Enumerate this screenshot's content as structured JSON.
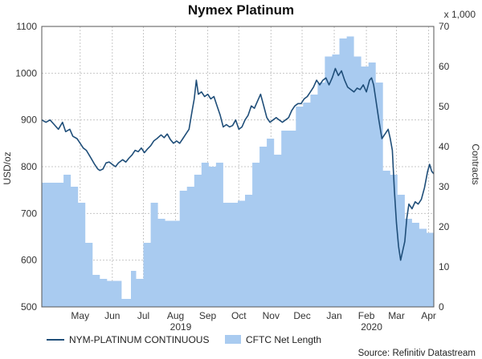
{
  "chart_data": {
    "type": "line",
    "title": "Nymex Platinum",
    "y_left": {
      "label": "USD/oz",
      "range": [
        500,
        1100
      ],
      "ticks": [
        500,
        600,
        700,
        800,
        900,
        1000,
        1100
      ]
    },
    "y_right": {
      "label": "Contracts",
      "unit_note": "x 1,000",
      "range": [
        0,
        70
      ],
      "ticks": [
        0,
        10,
        20,
        30,
        40,
        50,
        60,
        70
      ]
    },
    "x_axis": {
      "range": [
        "2019-04-08",
        "2020-04-20"
      ],
      "month_ticks": [
        {
          "label": "May",
          "date": "2019-05-15"
        },
        {
          "label": "Jun",
          "date": "2019-06-15"
        },
        {
          "label": "Jul",
          "date": "2019-07-15"
        },
        {
          "label": "Aug",
          "date": "2019-08-15"
        },
        {
          "label": "Sep",
          "date": "2019-09-15"
        },
        {
          "label": "Oct",
          "date": "2019-10-15"
        },
        {
          "label": "Nov",
          "date": "2019-11-15"
        },
        {
          "label": "Dec",
          "date": "2019-12-15"
        },
        {
          "label": "Jan",
          "date": "2020-01-15"
        },
        {
          "label": "Feb",
          "date": "2020-02-15"
        },
        {
          "label": "Mar",
          "date": "2020-03-15"
        },
        {
          "label": "Apr",
          "date": "2020-04-15"
        }
      ],
      "year_labels": [
        {
          "label": "2019",
          "date": "2019-08-20"
        },
        {
          "label": "2020",
          "date": "2020-02-20"
        }
      ]
    },
    "grid": true,
    "legend_position": "bottom-left",
    "series": [
      {
        "name": "NYM-PLATINUM CONTINUOUS",
        "type": "line",
        "axis": "left",
        "color": "#1f4e79",
        "points": [
          [
            "2019-04-08",
            900
          ],
          [
            "2019-04-12",
            895
          ],
          [
            "2019-04-16",
            900
          ],
          [
            "2019-04-20",
            890
          ],
          [
            "2019-04-24",
            880
          ],
          [
            "2019-04-28",
            895
          ],
          [
            "2019-05-01",
            875
          ],
          [
            "2019-05-05",
            880
          ],
          [
            "2019-05-08",
            865
          ],
          [
            "2019-05-12",
            860
          ],
          [
            "2019-05-15",
            850
          ],
          [
            "2019-05-18",
            840
          ],
          [
            "2019-05-21",
            835
          ],
          [
            "2019-05-25",
            820
          ],
          [
            "2019-05-29",
            805
          ],
          [
            "2019-06-01",
            795
          ],
          [
            "2019-06-03",
            792
          ],
          [
            "2019-06-06",
            795
          ],
          [
            "2019-06-09",
            808
          ],
          [
            "2019-06-12",
            810
          ],
          [
            "2019-06-15",
            805
          ],
          [
            "2019-06-18",
            800
          ],
          [
            "2019-06-21",
            808
          ],
          [
            "2019-06-25",
            815
          ],
          [
            "2019-06-28",
            810
          ],
          [
            "2019-07-01",
            818
          ],
          [
            "2019-07-04",
            825
          ],
          [
            "2019-07-07",
            835
          ],
          [
            "2019-07-10",
            832
          ],
          [
            "2019-07-13",
            840
          ],
          [
            "2019-07-16",
            830
          ],
          [
            "2019-07-19",
            838
          ],
          [
            "2019-07-22",
            845
          ],
          [
            "2019-07-25",
            855
          ],
          [
            "2019-07-28",
            860
          ],
          [
            "2019-08-01",
            868
          ],
          [
            "2019-08-04",
            862
          ],
          [
            "2019-08-07",
            870
          ],
          [
            "2019-08-10",
            858
          ],
          [
            "2019-08-13",
            850
          ],
          [
            "2019-08-16",
            855
          ],
          [
            "2019-08-19",
            850
          ],
          [
            "2019-08-22",
            860
          ],
          [
            "2019-08-25",
            870
          ],
          [
            "2019-08-28",
            880
          ],
          [
            "2019-08-31",
            920
          ],
          [
            "2019-09-02",
            945
          ],
          [
            "2019-09-04",
            985
          ],
          [
            "2019-09-06",
            955
          ],
          [
            "2019-09-09",
            960
          ],
          [
            "2019-09-12",
            950
          ],
          [
            "2019-09-15",
            955
          ],
          [
            "2019-09-18",
            945
          ],
          [
            "2019-09-21",
            950
          ],
          [
            "2019-09-24",
            930
          ],
          [
            "2019-09-27",
            910
          ],
          [
            "2019-09-30",
            885
          ],
          [
            "2019-10-03",
            890
          ],
          [
            "2019-10-06",
            885
          ],
          [
            "2019-10-09",
            888
          ],
          [
            "2019-10-12",
            900
          ],
          [
            "2019-10-15",
            880
          ],
          [
            "2019-10-18",
            885
          ],
          [
            "2019-10-21",
            900
          ],
          [
            "2019-10-24",
            910
          ],
          [
            "2019-10-27",
            930
          ],
          [
            "2019-10-30",
            925
          ],
          [
            "2019-11-02",
            940
          ],
          [
            "2019-11-05",
            955
          ],
          [
            "2019-11-08",
            930
          ],
          [
            "2019-11-11",
            905
          ],
          [
            "2019-11-14",
            895
          ],
          [
            "2019-11-17",
            900
          ],
          [
            "2019-11-20",
            905
          ],
          [
            "2019-11-23",
            900
          ],
          [
            "2019-11-26",
            895
          ],
          [
            "2019-11-29",
            900
          ],
          [
            "2019-12-02",
            905
          ],
          [
            "2019-12-05",
            920
          ],
          [
            "2019-12-08",
            930
          ],
          [
            "2019-12-11",
            935
          ],
          [
            "2019-12-14",
            935
          ],
          [
            "2019-12-17",
            945
          ],
          [
            "2019-12-20",
            950
          ],
          [
            "2019-12-23",
            960
          ],
          [
            "2019-12-26",
            970
          ],
          [
            "2019-12-29",
            985
          ],
          [
            "2020-01-01",
            975
          ],
          [
            "2020-01-04",
            985
          ],
          [
            "2020-01-07",
            990
          ],
          [
            "2020-01-10",
            975
          ],
          [
            "2020-01-13",
            990
          ],
          [
            "2020-01-16",
            1010
          ],
          [
            "2020-01-19",
            995
          ],
          [
            "2020-01-22",
            1005
          ],
          [
            "2020-01-25",
            985
          ],
          [
            "2020-01-28",
            970
          ],
          [
            "2020-01-31",
            965
          ],
          [
            "2020-02-03",
            960
          ],
          [
            "2020-02-06",
            968
          ],
          [
            "2020-02-09",
            965
          ],
          [
            "2020-02-12",
            975
          ],
          [
            "2020-02-15",
            960
          ],
          [
            "2020-02-18",
            985
          ],
          [
            "2020-02-20",
            990
          ],
          [
            "2020-02-22",
            975
          ],
          [
            "2020-02-24",
            945
          ],
          [
            "2020-02-27",
            900
          ],
          [
            "2020-03-01",
            860
          ],
          [
            "2020-03-04",
            870
          ],
          [
            "2020-03-07",
            880
          ],
          [
            "2020-03-09",
            860
          ],
          [
            "2020-03-11",
            835
          ],
          [
            "2020-03-13",
            750
          ],
          [
            "2020-03-15",
            680
          ],
          [
            "2020-03-17",
            630
          ],
          [
            "2020-03-19",
            600
          ],
          [
            "2020-03-21",
            620
          ],
          [
            "2020-03-23",
            640
          ],
          [
            "2020-03-25",
            690
          ],
          [
            "2020-03-27",
            720
          ],
          [
            "2020-03-30",
            710
          ],
          [
            "2020-04-02",
            725
          ],
          [
            "2020-04-05",
            720
          ],
          [
            "2020-04-08",
            730
          ],
          [
            "2020-04-11",
            755
          ],
          [
            "2020-04-14",
            790
          ],
          [
            "2020-04-16",
            805
          ],
          [
            "2020-04-18",
            790
          ],
          [
            "2020-04-20",
            785
          ]
        ]
      },
      {
        "name": "CFTC Net Length",
        "type": "area",
        "axis": "right",
        "color": "#a9cbf0",
        "points": [
          [
            "2019-04-08",
            31
          ],
          [
            "2019-04-22",
            31
          ],
          [
            "2019-04-29",
            33
          ],
          [
            "2019-05-06",
            30
          ],
          [
            "2019-05-13",
            26
          ],
          [
            "2019-05-20",
            16
          ],
          [
            "2019-05-27",
            8
          ],
          [
            "2019-06-03",
            7
          ],
          [
            "2019-06-10",
            6.5
          ],
          [
            "2019-06-17",
            6.5
          ],
          [
            "2019-06-24",
            2
          ],
          [
            "2019-07-01",
            2
          ],
          [
            "2019-07-03",
            9
          ],
          [
            "2019-07-08",
            7
          ],
          [
            "2019-07-15",
            16
          ],
          [
            "2019-07-22",
            26
          ],
          [
            "2019-07-29",
            22
          ],
          [
            "2019-08-05",
            21.5
          ],
          [
            "2019-08-12",
            21.5
          ],
          [
            "2019-08-19",
            29
          ],
          [
            "2019-08-26",
            30
          ],
          [
            "2019-09-02",
            33
          ],
          [
            "2019-09-09",
            36
          ],
          [
            "2019-09-16",
            35
          ],
          [
            "2019-09-23",
            36
          ],
          [
            "2019-09-30",
            26
          ],
          [
            "2019-10-07",
            26
          ],
          [
            "2019-10-14",
            26.5
          ],
          [
            "2019-10-21",
            28
          ],
          [
            "2019-10-28",
            36
          ],
          [
            "2019-11-04",
            40
          ],
          [
            "2019-11-11",
            42
          ],
          [
            "2019-11-18",
            38
          ],
          [
            "2019-11-25",
            44
          ],
          [
            "2019-12-02",
            44
          ],
          [
            "2019-12-09",
            50
          ],
          [
            "2019-12-16",
            51
          ],
          [
            "2019-12-23",
            53
          ],
          [
            "2019-12-30",
            56
          ],
          [
            "2020-01-06",
            62.5
          ],
          [
            "2020-01-13",
            63
          ],
          [
            "2020-01-20",
            67
          ],
          [
            "2020-01-27",
            67.5
          ],
          [
            "2020-02-03",
            62.5
          ],
          [
            "2020-02-10",
            60
          ],
          [
            "2020-02-17",
            61
          ],
          [
            "2020-02-24",
            56
          ],
          [
            "2020-03-02",
            34
          ],
          [
            "2020-03-09",
            33
          ],
          [
            "2020-03-16",
            28
          ],
          [
            "2020-03-23",
            22
          ],
          [
            "2020-03-30",
            21
          ],
          [
            "2020-04-06",
            19.5
          ],
          [
            "2020-04-13",
            18.5
          ],
          [
            "2020-04-20",
            18
          ]
        ]
      }
    ]
  },
  "source": "Source: Refinitiv Datastream"
}
